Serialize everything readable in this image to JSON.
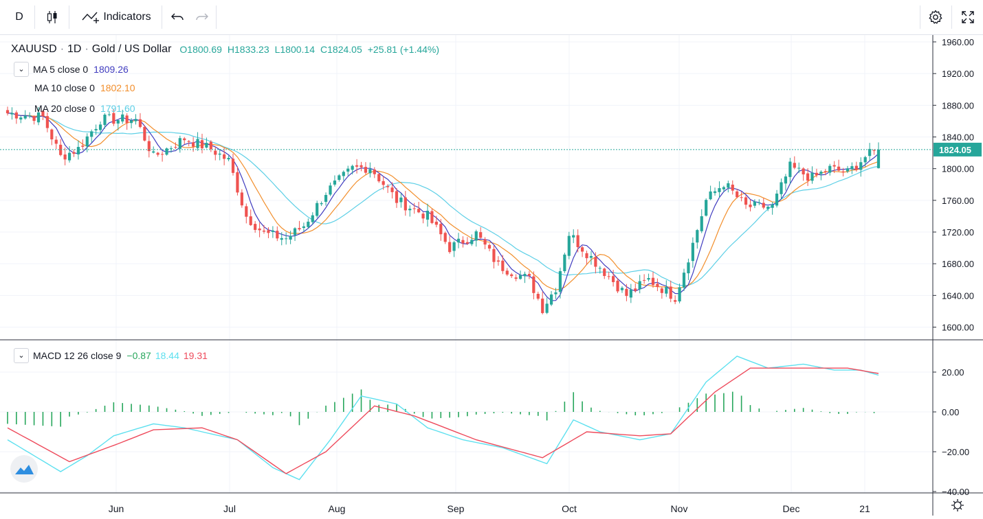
{
  "toolbar": {
    "interval": "D",
    "indicators_label": "Indicators"
  },
  "colors": {
    "up": "#26a69a",
    "down": "#ef5350",
    "ma5": "#3f3bbf",
    "ma10": "#f28e2b",
    "ma20": "#5ccfe6",
    "macd": "#5de0ef",
    "signal": "#ee4a5b",
    "hist": "#26a65b"
  },
  "symbol": {
    "name": "XAUUSD",
    "interval": "1D",
    "description": "Gold / US Dollar",
    "open": "O1800.69",
    "high": "H1833.23",
    "low": "L1800.14",
    "close": "C1824.05",
    "change": "+25.81 (+1.44%)"
  },
  "legend": {
    "ma5": {
      "label": "MA 5 close 0",
      "value": "1809.26"
    },
    "ma10": {
      "label": "MA 10 close 0",
      "value": "1802.10"
    },
    "ma20": {
      "label": "MA 20 close 0",
      "value": "1791.60"
    },
    "macd": {
      "label": "MACD 12 26 close 9",
      "hist": "−0.87",
      "macd": "18.44",
      "signal": "19.31"
    }
  },
  "chart_data": [
    {
      "type": "candlestick",
      "title": "XAUUSD · 1D · Gold / US Dollar",
      "ylim": [
        1590,
        1970
      ],
      "y_ticks": [
        "1960.00",
        "1920.00",
        "1880.00",
        "1840.00",
        "1800.00",
        "1760.00",
        "1720.00",
        "1680.00",
        "1640.00",
        "1600.00"
      ],
      "x_ticks": [
        "Jun",
        "Jul",
        "Aug",
        "Sep",
        "Oct",
        "Nov",
        "Dec",
        "21"
      ],
      "last_price": "1824.05",
      "close_waypoints": [
        {
          "day": 0,
          "close": 1870
        },
        {
          "day": 8,
          "close": 1865
        },
        {
          "day": 12,
          "close": 1815
        },
        {
          "day": 16,
          "close": 1825
        },
        {
          "day": 21,
          "close": 1862
        },
        {
          "day": 29,
          "close": 1862
        },
        {
          "day": 33,
          "close": 1815
        },
        {
          "day": 40,
          "close": 1838
        },
        {
          "day": 46,
          "close": 1825
        },
        {
          "day": 50,
          "close": 1810
        },
        {
          "day": 54,
          "close": 1740
        },
        {
          "day": 58,
          "close": 1718
        },
        {
          "day": 63,
          "close": 1712
        },
        {
          "day": 67,
          "close": 1728
        },
        {
          "day": 72,
          "close": 1770
        },
        {
          "day": 78,
          "close": 1800
        },
        {
          "day": 82,
          "close": 1802
        },
        {
          "day": 88,
          "close": 1760
        },
        {
          "day": 95,
          "close": 1740
        },
        {
          "day": 100,
          "close": 1700
        },
        {
          "day": 106,
          "close": 1718
        },
        {
          "day": 111,
          "close": 1678
        },
        {
          "day": 118,
          "close": 1660
        },
        {
          "day": 121,
          "close": 1624
        },
        {
          "day": 124,
          "close": 1650
        },
        {
          "day": 127,
          "close": 1718
        },
        {
          "day": 130,
          "close": 1700
        },
        {
          "day": 135,
          "close": 1670
        },
        {
          "day": 140,
          "close": 1640
        },
        {
          "day": 145,
          "close": 1660
        },
        {
          "day": 151,
          "close": 1638
        },
        {
          "day": 155,
          "close": 1705
        },
        {
          "day": 158,
          "close": 1760
        },
        {
          "day": 162,
          "close": 1782
        },
        {
          "day": 167,
          "close": 1752
        },
        {
          "day": 173,
          "close": 1752
        },
        {
          "day": 177,
          "close": 1802
        },
        {
          "day": 182,
          "close": 1788
        },
        {
          "day": 186,
          "close": 1800
        },
        {
          "day": 190,
          "close": 1795
        },
        {
          "day": 194,
          "close": 1815
        },
        {
          "day": 197,
          "close": 1824.05
        }
      ]
    },
    {
      "type": "macd",
      "ylim": [
        -40,
        35
      ],
      "y_ticks": [
        "20.00",
        "0.00",
        "−20.00",
        "−40.00"
      ],
      "macd_waypoints": [
        {
          "day": 0,
          "value": -14
        },
        {
          "day": 12,
          "value": -30
        },
        {
          "day": 18,
          "value": -22
        },
        {
          "day": 24,
          "value": -12
        },
        {
          "day": 33,
          "value": -6
        },
        {
          "day": 40,
          "value": -8
        },
        {
          "day": 52,
          "value": -14
        },
        {
          "day": 60,
          "value": -28
        },
        {
          "day": 66,
          "value": -34
        },
        {
          "day": 73,
          "value": -14
        },
        {
          "day": 80,
          "value": 8
        },
        {
          "day": 88,
          "value": 4
        },
        {
          "day": 95,
          "value": -8
        },
        {
          "day": 103,
          "value": -14
        },
        {
          "day": 112,
          "value": -18
        },
        {
          "day": 122,
          "value": -26
        },
        {
          "day": 128,
          "value": -4
        },
        {
          "day": 134,
          "value": -10
        },
        {
          "day": 143,
          "value": -14
        },
        {
          "day": 150,
          "value": -11
        },
        {
          "day": 158,
          "value": 15
        },
        {
          "day": 165,
          "value": 28
        },
        {
          "day": 172,
          "value": 22
        },
        {
          "day": 180,
          "value": 24
        },
        {
          "day": 187,
          "value": 21
        },
        {
          "day": 193,
          "value": 21
        },
        {
          "day": 197,
          "value": 18.44
        }
      ],
      "signal_waypoints": [
        {
          "day": 0,
          "value": -8
        },
        {
          "day": 14,
          "value": -25
        },
        {
          "day": 25,
          "value": -16
        },
        {
          "day": 33,
          "value": -9
        },
        {
          "day": 44,
          "value": -8
        },
        {
          "day": 52,
          "value": -14
        },
        {
          "day": 63,
          "value": -31
        },
        {
          "day": 72,
          "value": -20
        },
        {
          "day": 83,
          "value": 3
        },
        {
          "day": 92,
          "value": -2
        },
        {
          "day": 106,
          "value": -14
        },
        {
          "day": 121,
          "value": -23
        },
        {
          "day": 131,
          "value": -10
        },
        {
          "day": 143,
          "value": -12
        },
        {
          "day": 150,
          "value": -11
        },
        {
          "day": 160,
          "value": 10
        },
        {
          "day": 168,
          "value": 22
        },
        {
          "day": 180,
          "value": 22
        },
        {
          "day": 190,
          "value": 22
        },
        {
          "day": 197,
          "value": 19.31
        }
      ]
    }
  ]
}
